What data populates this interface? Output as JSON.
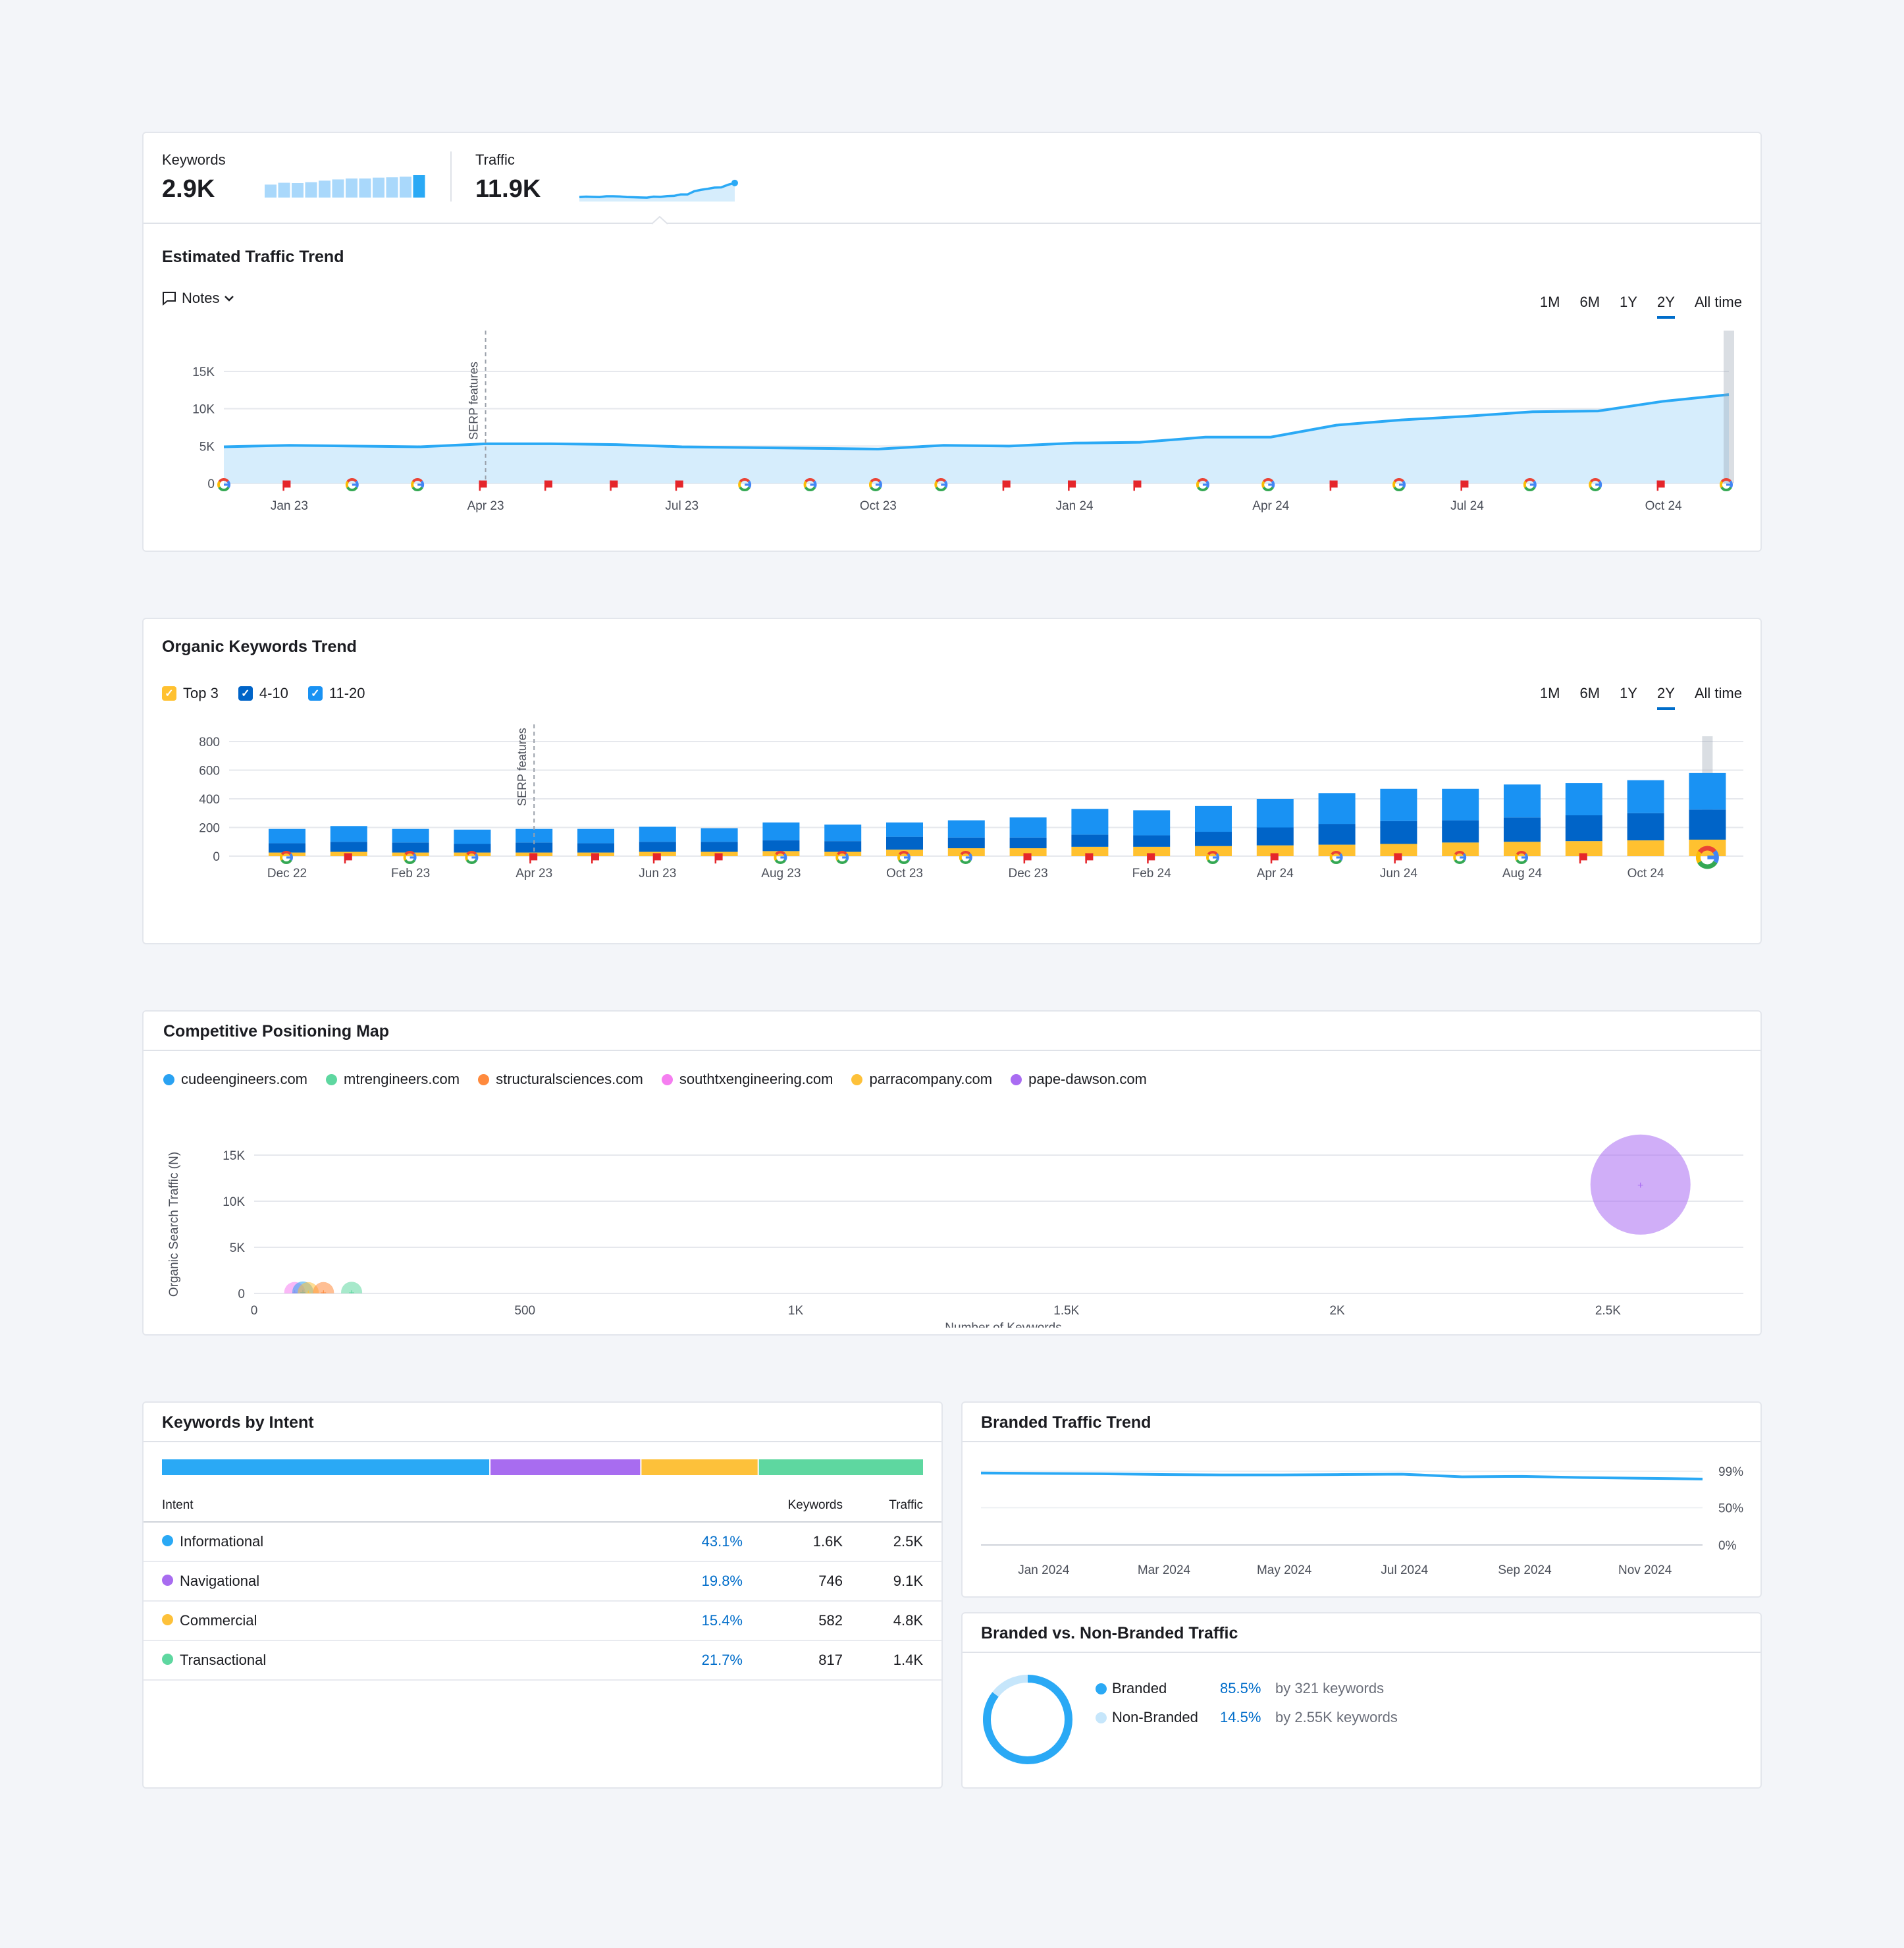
{
  "summary": {
    "keywords_label": "Keywords",
    "keywords_value": "2.9K",
    "traffic_label": "Traffic",
    "traffic_value": "11.9K"
  },
  "traffic_trend": {
    "title": "Estimated Traffic Trend",
    "notes_label": "Notes",
    "ranges": [
      "1M",
      "6M",
      "1Y",
      "2Y",
      "All time"
    ],
    "active_range": "2Y",
    "annotation": "SERP features"
  },
  "keywords_trend": {
    "title": "Organic Keywords Trend",
    "legend": [
      {
        "label": "Top 3",
        "color": "#ffc130"
      },
      {
        "label": "4-10",
        "color": "#0064c8"
      },
      {
        "label": "11-20",
        "color": "#1992f3"
      }
    ],
    "ranges": [
      "1M",
      "6M",
      "1Y",
      "2Y",
      "All time"
    ],
    "active_range": "2Y",
    "annotation": "SERP features"
  },
  "positioning": {
    "title": "Competitive Positioning Map",
    "domains": [
      {
        "label": "cudeengineers.com",
        "color": "#2aa2f2"
      },
      {
        "label": "mtrengineers.com",
        "color": "#5ed7a0"
      },
      {
        "label": "structuralsciences.com",
        "color": "#ff8a3d"
      },
      {
        "label": "southtxengineering.com",
        "color": "#f57ef0"
      },
      {
        "label": "parracompany.com",
        "color": "#fdc13a"
      },
      {
        "label": "pape-dawson.com",
        "color": "#a96cf2"
      }
    ]
  },
  "intent": {
    "title": "Keywords by Intent",
    "col_intent": "Intent",
    "col_keywords": "Keywords",
    "col_traffic": "Traffic",
    "rows": [
      {
        "name": "Informational",
        "pct": "43.1%",
        "keywords": "1.6K",
        "traffic": "2.5K",
        "color": "#2aa9f5"
      },
      {
        "name": "Navigational",
        "pct": "19.8%",
        "keywords": "746",
        "traffic": "9.1K",
        "color": "#a86cf0"
      },
      {
        "name": "Commercial",
        "pct": "15.4%",
        "keywords": "582",
        "traffic": "4.8K",
        "color": "#fdc13a"
      },
      {
        "name": "Transactional",
        "pct": "21.7%",
        "keywords": "817",
        "traffic": "1.4K",
        "color": "#5ed7a0"
      }
    ]
  },
  "branded_trend": {
    "title": "Branded Traffic Trend"
  },
  "branded_split": {
    "title": "Branded vs. Non-Branded Traffic",
    "rows": [
      {
        "label": "Branded",
        "pct": "85.5%",
        "detail": "by 321 keywords",
        "color": "#2aa9f5"
      },
      {
        "label": "Non-Branded",
        "pct": "14.5%",
        "detail": "by 2.55K keywords",
        "color": "#c6e6fb"
      }
    ]
  },
  "chart_data": [
    {
      "type": "area",
      "title": "Estimated Traffic Trend",
      "x": [
        "Dec 22",
        "Jan 23",
        "Feb 23",
        "Mar 23",
        "Apr 23",
        "May 23",
        "Jun 23",
        "Jul 23",
        "Aug 23",
        "Sep 23",
        "Oct 23",
        "Nov 23",
        "Dec 23",
        "Jan 24",
        "Feb 24",
        "Mar 24",
        "Apr 24",
        "May 24",
        "Jun 24",
        "Jul 24",
        "Aug 24",
        "Sep 24",
        "Oct 24",
        "Nov 24"
      ],
      "values": [
        4900,
        5100,
        5000,
        4900,
        5300,
        5300,
        5200,
        4900,
        4800,
        4700,
        4600,
        5100,
        5000,
        5400,
        5500,
        6200,
        6200,
        7800,
        8500,
        9000,
        9600,
        9700,
        11000,
        11900
      ],
      "x_tick_labels": [
        "Jan 23",
        "Apr 23",
        "Jul 23",
        "Oct 23",
        "Jan 24",
        "Apr 24",
        "Jul 24",
        "Oct 24"
      ],
      "y_ticks": [
        "0",
        "5K",
        "10K",
        "15K"
      ],
      "ylim": [
        0,
        15000
      ],
      "annotation": {
        "x": "Apr 23",
        "label": "SERP features"
      },
      "grid": true,
      "color": "#2aa9f5"
    },
    {
      "type": "bar",
      "title": "Organic Keywords Trend",
      "categories": [
        "Dec 22",
        "Jan 23",
        "Feb 23",
        "Mar 23",
        "Apr 23",
        "May 23",
        "Jun 23",
        "Jul 23",
        "Aug 23",
        "Sep 23",
        "Oct 23",
        "Nov 23",
        "Dec 23",
        "Jan 24",
        "Feb 24",
        "Mar 24",
        "Apr 24",
        "May 24",
        "Jun 24",
        "Jul 24",
        "Aug 24",
        "Sep 24",
        "Oct 24",
        "Nov 24"
      ],
      "x_tick_labels": [
        "Dec 22",
        "Feb 23",
        "Apr 23",
        "Jun 23",
        "Aug 23",
        "Oct 23",
        "Dec 23",
        "Feb 24",
        "Apr 24",
        "Jun 24",
        "Aug 24",
        "Oct 24"
      ],
      "y_ticks": [
        "0",
        "200",
        "400",
        "600",
        "800"
      ],
      "ylim": [
        0,
        800
      ],
      "stacked": true,
      "series": [
        {
          "name": "Top 3",
          "color": "#ffc130",
          "values": [
            25,
            30,
            25,
            25,
            25,
            25,
            30,
            30,
            35,
            30,
            45,
            55,
            55,
            65,
            65,
            70,
            75,
            80,
            85,
            95,
            100,
            105,
            110,
            115
          ]
        },
        {
          "name": "4-10",
          "color": "#0064c8",
          "values": [
            65,
            70,
            70,
            60,
            70,
            65,
            70,
            70,
            75,
            75,
            90,
            75,
            75,
            85,
            80,
            100,
            125,
            145,
            160,
            155,
            170,
            180,
            190,
            210
          ]
        },
        {
          "name": "11-20",
          "color": "#1992f3",
          "values": [
            100,
            110,
            95,
            100,
            95,
            100,
            105,
            95,
            125,
            115,
            100,
            120,
            140,
            180,
            175,
            180,
            200,
            215,
            225,
            220,
            230,
            225,
            230,
            255
          ]
        }
      ],
      "annotation": {
        "x": "Apr 23",
        "label": "SERP features"
      }
    },
    {
      "type": "scatter",
      "title": "Competitive Positioning Map",
      "xlabel": "Number of Keywords",
      "ylabel": "Organic Search Traffic (N)",
      "x_ticks": [
        "0",
        "500",
        "1K",
        "1.5K",
        "2K",
        "2.5K"
      ],
      "y_ticks": [
        "0",
        "5K",
        "10K",
        "15K"
      ],
      "xlim": [
        0,
        2750
      ],
      "ylim": [
        0,
        15000
      ],
      "points": [
        {
          "name": "southtxengineering.com",
          "x": 75,
          "y": 100,
          "color": "#f57ef0"
        },
        {
          "name": "cudeengineers.com",
          "x": 90,
          "y": 150,
          "color": "#2aa2f2"
        },
        {
          "name": "parracompany.com",
          "x": 100,
          "y": 80,
          "color": "#fdc13a"
        },
        {
          "name": "structuralsciences.com",
          "x": 128,
          "y": 90,
          "color": "#ff8a3d"
        },
        {
          "name": "mtrengineers.com",
          "x": 180,
          "y": 120,
          "color": "#5ed7a0"
        },
        {
          "name": "pape-dawson.com",
          "x": 2560,
          "y": 11800,
          "color": "#a96cf2"
        }
      ]
    },
    {
      "type": "line",
      "title": "Branded Traffic Trend",
      "x": [
        "Dec 2023",
        "Jan 2024",
        "Feb 2024",
        "Mar 2024",
        "Apr 2024",
        "May 2024",
        "Jun 2024",
        "Jul 2024",
        "Aug 2024",
        "Sep 2024",
        "Oct 2024",
        "Nov 2024",
        "Dec 2024"
      ],
      "x_tick_labels": [
        "Jan 2024",
        "Mar 2024",
        "May 2024",
        "Jul 2024",
        "Sep 2024",
        "Nov 2024"
      ],
      "values": [
        93,
        92.5,
        92,
        91,
        90.5,
        90.5,
        91,
        91.5,
        88,
        88.5,
        87,
        86,
        85
      ],
      "y_ticks": [
        "0%",
        "50%",
        "99%"
      ],
      "ylim": [
        0,
        99
      ],
      "color": "#2aa9f5"
    },
    {
      "type": "pie",
      "title": "Branded vs. Non-Branded Traffic",
      "labels": [
        "Branded",
        "Non-Branded"
      ],
      "values": [
        85.5,
        14.5
      ],
      "colors": [
        "#2aa9f5",
        "#c6e6fb"
      ]
    }
  ]
}
